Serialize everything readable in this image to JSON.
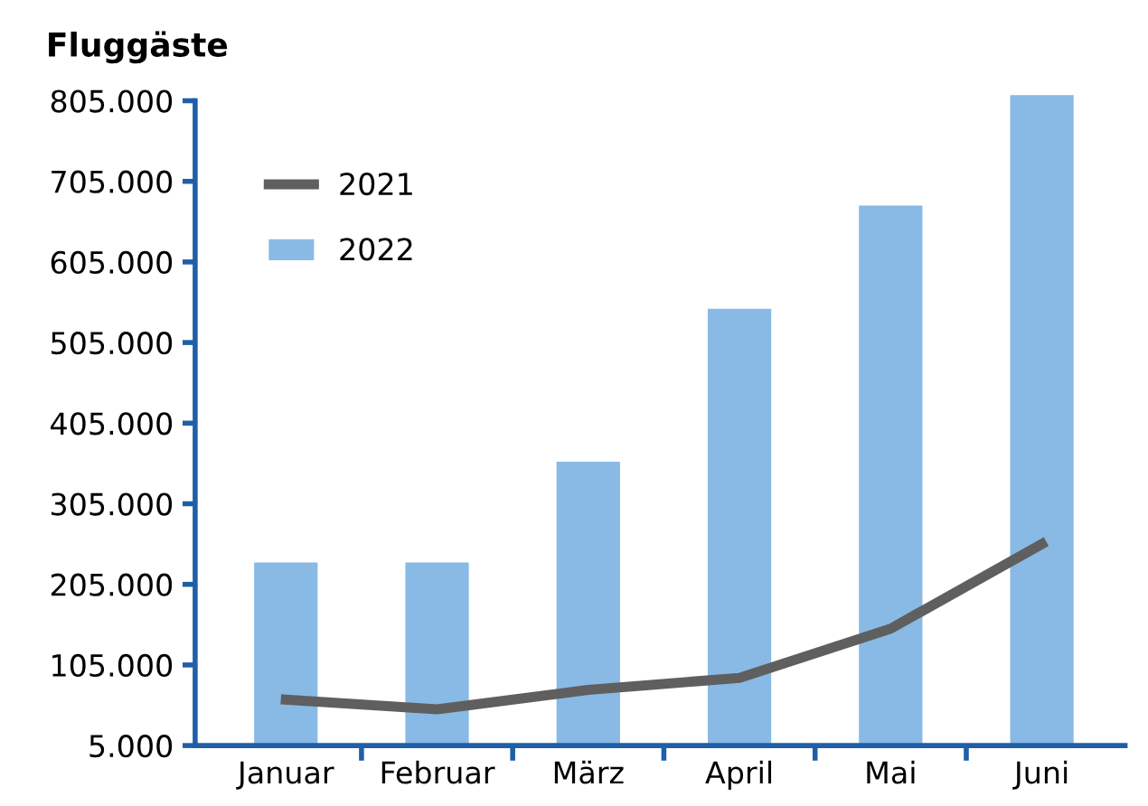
{
  "chart_data": {
    "type": "bar",
    "title": "Fluggäste",
    "categories": [
      "Januar",
      "Februar",
      "März",
      "April",
      "Mai",
      "Juni"
    ],
    "series": [
      {
        "name": "2022",
        "color": "#88bae5",
        "values": [
          232000,
          232000,
          357000,
          547000,
          675000,
          812000
        ]
      },
      {
        "name": "2021",
        "type": "line",
        "color": "#5f5f5f",
        "values": [
          62000,
          50000,
          74000,
          89000,
          150000,
          255000
        ]
      }
    ],
    "ylim": [
      5000,
      815000
    ],
    "yticks": [
      {
        "value": 5000,
        "label": "5.000"
      },
      {
        "value": 105000,
        "label": "105.000"
      },
      {
        "value": 205000,
        "label": "205.000"
      },
      {
        "value": 305000,
        "label": "305.000"
      },
      {
        "value": 405000,
        "label": "405.000"
      },
      {
        "value": 505000,
        "label": "505.000"
      },
      {
        "value": 605000,
        "label": "605.000"
      },
      {
        "value": 705000,
        "label": "705.000"
      },
      {
        "value": 805000,
        "label": "805.000"
      }
    ],
    "grid": false,
    "legend": "top left",
    "marker": "none",
    "line_style": "solid"
  }
}
